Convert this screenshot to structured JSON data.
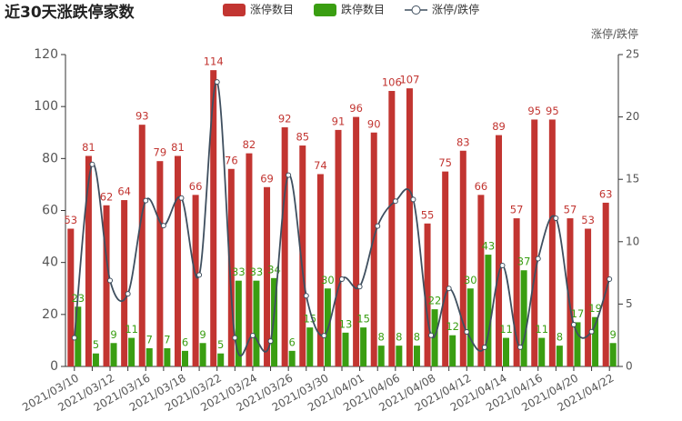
{
  "chart_data": {
    "type": "bar",
    "title": "近30天涨跌停家数",
    "categories": [
      "2021/03/10",
      null,
      "2021/03/12",
      null,
      "2021/03/16",
      null,
      "2021/03/18",
      null,
      "2021/03/22",
      null,
      "2021/03/24",
      null,
      "2021/03/26",
      null,
      "2021/03/30",
      null,
      "2021/04/01",
      null,
      "2021/04/06",
      null,
      "2021/04/08",
      null,
      "2021/04/12",
      null,
      "2021/04/14",
      null,
      "2021/04/16",
      null,
      "2021/04/20",
      null,
      "2021/04/22"
    ],
    "series": [
      {
        "name": "涨停数目",
        "type": "bar",
        "color": "#c23531",
        "values": [
          53,
          81,
          62,
          64,
          93,
          79,
          81,
          66,
          114,
          76,
          82,
          69,
          92,
          85,
          74,
          91,
          96,
          90,
          106,
          107,
          55,
          75,
          83,
          66,
          89,
          57,
          95,
          95,
          57,
          53,
          63
        ]
      },
      {
        "name": "跌停数目",
        "type": "bar",
        "color": "#3a9e12",
        "values": [
          23,
          5,
          9,
          11,
          7,
          7,
          6,
          9,
          5,
          33,
          33,
          34,
          6,
          15,
          30,
          13,
          15,
          8,
          8,
          8,
          22,
          12,
          30,
          43,
          11,
          37,
          11,
          8,
          17,
          19,
          9
        ]
      },
      {
        "name": "涨停/跌停",
        "type": "line",
        "axis": "y2",
        "color": "#3f4f5f",
        "values": [
          2.3,
          16.2,
          6.89,
          5.82,
          13.29,
          11.29,
          13.5,
          7.33,
          22.8,
          2.3,
          2.48,
          2.03,
          15.33,
          5.67,
          2.47,
          7,
          6.4,
          11.25,
          13.25,
          13.38,
          2.5,
          6.25,
          2.77,
          1.53,
          8.09,
          1.54,
          8.64,
          11.88,
          3.35,
          2.79,
          7
        ]
      }
    ],
    "ylim": [
      0,
      120
    ],
    "yticks": [
      0,
      20,
      40,
      60,
      80,
      100,
      120
    ],
    "y2lim": [
      0,
      25
    ],
    "y2ticks": [
      0,
      5,
      10,
      15,
      20,
      25
    ],
    "y2label": "涨停/跌停",
    "grid": false
  }
}
